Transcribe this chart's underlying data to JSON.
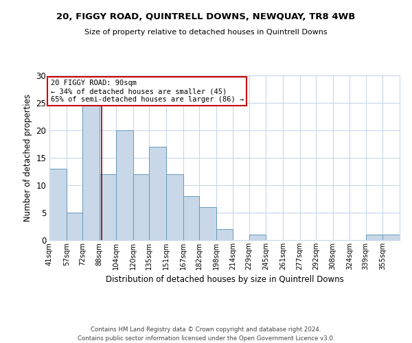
{
  "title1": "20, FIGGY ROAD, QUINTRELL DOWNS, NEWQUAY, TR8 4WB",
  "title2": "Size of property relative to detached houses in Quintrell Downs",
  "xlabel": "Distribution of detached houses by size in Quintrell Downs",
  "ylabel": "Number of detached properties",
  "footer1": "Contains HM Land Registry data © Crown copyright and database right 2024.",
  "footer2": "Contains public sector information licensed under the Open Government Licence v3.0.",
  "annotation_line1": "20 FIGGY ROAD: 90sqm",
  "annotation_line2": "← 34% of detached houses are smaller (45)",
  "annotation_line3": "65% of semi-detached houses are larger (86) →",
  "property_sqm": 90,
  "bar_labels": [
    "41sqm",
    "57sqm",
    "72sqm",
    "88sqm",
    "104sqm",
    "120sqm",
    "135sqm",
    "151sqm",
    "167sqm",
    "182sqm",
    "198sqm",
    "214sqm",
    "229sqm",
    "245sqm",
    "261sqm",
    "277sqm",
    "292sqm",
    "308sqm",
    "324sqm",
    "339sqm",
    "355sqm"
  ],
  "bar_values": [
    13,
    5,
    25,
    12,
    20,
    12,
    17,
    12,
    8,
    6,
    2,
    0,
    1,
    0,
    0,
    0,
    0,
    0,
    0,
    1,
    1
  ],
  "bar_edges": [
    41,
    57,
    72,
    88,
    104,
    120,
    135,
    151,
    167,
    182,
    198,
    214,
    229,
    245,
    261,
    277,
    292,
    308,
    324,
    339,
    355,
    371
  ],
  "bar_color": "#c8d8e8",
  "bar_edge_color": "#6699bb",
  "property_line_color": "#8b0000",
  "annotation_box_edge": "#cc0000",
  "ylim": [
    0,
    30
  ],
  "yticks": [
    0,
    5,
    10,
    15,
    20,
    25,
    30
  ],
  "bg_color": "#ffffff",
  "grid_color": "#c8d8ea"
}
